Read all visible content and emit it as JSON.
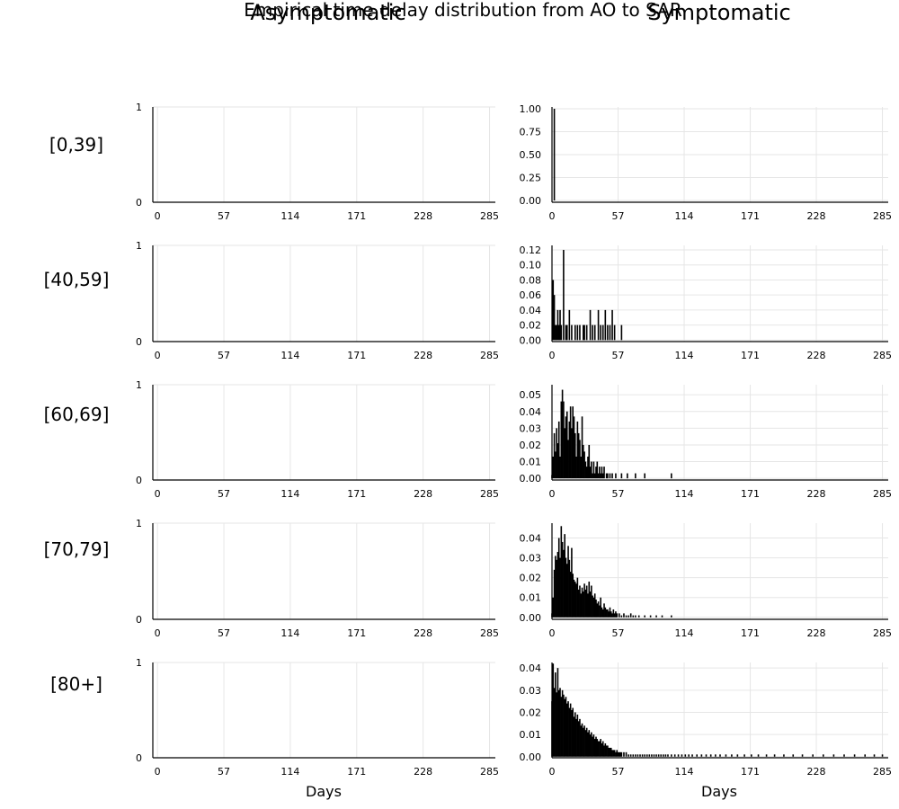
{
  "figure": {
    "suptitle": "Empirical time delay distribution from AO to SAR",
    "column_titles": [
      "Asymptomatic",
      "Symptomatic"
    ],
    "row_labels": [
      "[0,39]",
      "[40,59]",
      "[60,69]",
      "[70,79]",
      "[80+]"
    ],
    "xlabel": "Days",
    "colors": {
      "bars": "#000000",
      "grid": "#e6e6e6",
      "background": "#ffffff"
    }
  },
  "chart_data": [
    {
      "type": "bar",
      "panel": "asymptomatic-0-39",
      "xlim": [
        -4,
        290
      ],
      "ylim": [
        0,
        1
      ],
      "xticks": [
        0,
        57,
        114,
        171,
        228,
        285
      ],
      "yticks": [
        0,
        1
      ],
      "ytick_labels": [
        "0",
        "1"
      ],
      "grid": true,
      "bars": []
    },
    {
      "type": "bar",
      "panel": "symptomatic-0-39",
      "xlim": [
        0,
        290
      ],
      "ylim": [
        -0.02,
        1.02
      ],
      "xticks": [
        0,
        57,
        114,
        171,
        228,
        285
      ],
      "yticks": [
        0,
        0.25,
        0.5,
        0.75,
        1
      ],
      "ytick_labels": [
        "0.00",
        "0.25",
        "0.50",
        "0.75",
        "1.00"
      ],
      "grid": true,
      "bars": [
        [
          2,
          1.0
        ]
      ]
    },
    {
      "type": "bar",
      "panel": "asymptomatic-40-59",
      "xlim": [
        -4,
        290
      ],
      "ylim": [
        0,
        1
      ],
      "xticks": [
        0,
        57,
        114,
        171,
        228,
        285
      ],
      "yticks": [
        0,
        1
      ],
      "ytick_labels": [
        "0",
        "1"
      ],
      "grid": true,
      "bars": []
    },
    {
      "type": "bar",
      "panel": "symptomatic-40-59",
      "xlim": [
        0,
        290
      ],
      "ylim": [
        -0.002,
        0.126
      ],
      "xticks": [
        0,
        57,
        114,
        171,
        228,
        285
      ],
      "yticks": [
        0,
        0.02,
        0.04,
        0.06,
        0.08,
        0.1,
        0.12
      ],
      "ytick_labels": [
        "0.00",
        "0.02",
        "0.04",
        "0.06",
        "0.08",
        "0.10",
        "0.12"
      ],
      "grid": true,
      "bars": [
        [
          1,
          0.08
        ],
        [
          2,
          0.06
        ],
        [
          3,
          0.02
        ],
        [
          4,
          0.02
        ],
        [
          5,
          0.04
        ],
        [
          6,
          0.02
        ],
        [
          7,
          0.04
        ],
        [
          8,
          0.02
        ],
        [
          10,
          0.12
        ],
        [
          12,
          0.02
        ],
        [
          13,
          0.02
        ],
        [
          15,
          0.04
        ],
        [
          17,
          0.02
        ],
        [
          20,
          0.02
        ],
        [
          22,
          0.02
        ],
        [
          24,
          0.02
        ],
        [
          27,
          0.02
        ],
        [
          28,
          0.02
        ],
        [
          30,
          0.02
        ],
        [
          33,
          0.04
        ],
        [
          35,
          0.02
        ],
        [
          37,
          0.02
        ],
        [
          40,
          0.04
        ],
        [
          42,
          0.02
        ],
        [
          44,
          0.02
        ],
        [
          46,
          0.04
        ],
        [
          48,
          0.02
        ],
        [
          50,
          0.02
        ],
        [
          52,
          0.04
        ],
        [
          54,
          0.02
        ],
        [
          60,
          0.02
        ]
      ]
    },
    {
      "type": "bar",
      "panel": "asymptomatic-60-69",
      "xlim": [
        -4,
        290
      ],
      "ylim": [
        0,
        1
      ],
      "xticks": [
        0,
        57,
        114,
        171,
        228,
        285
      ],
      "yticks": [
        0,
        1
      ],
      "ytick_labels": [
        "0",
        "1"
      ],
      "grid": true,
      "bars": []
    },
    {
      "type": "bar",
      "panel": "symptomatic-60-69",
      "xlim": [
        0,
        290
      ],
      "ylim": [
        -0.001,
        0.056
      ],
      "xticks": [
        0,
        57,
        114,
        171,
        228,
        285
      ],
      "yticks": [
        0,
        0.01,
        0.02,
        0.03,
        0.04,
        0.05
      ],
      "ytick_labels": [
        "0.00",
        "0.01",
        "0.02",
        "0.03",
        "0.04",
        "0.05"
      ],
      "grid": true,
      "bars": [
        [
          0,
          0.002
        ],
        [
          1,
          0.013
        ],
        [
          2,
          0.027
        ],
        [
          3,
          0.016
        ],
        [
          4,
          0.03
        ],
        [
          5,
          0.021
        ],
        [
          6,
          0.034
        ],
        [
          7,
          0.013
        ],
        [
          8,
          0.046
        ],
        [
          9,
          0.053
        ],
        [
          10,
          0.046
        ],
        [
          11,
          0.03
        ],
        [
          12,
          0.037
        ],
        [
          13,
          0.04
        ],
        [
          14,
          0.023
        ],
        [
          15,
          0.034
        ],
        [
          16,
          0.043
        ],
        [
          17,
          0.03
        ],
        [
          18,
          0.043
        ],
        [
          19,
          0.037
        ],
        [
          20,
          0.027
        ],
        [
          21,
          0.013
        ],
        [
          22,
          0.034
        ],
        [
          23,
          0.027
        ],
        [
          24,
          0.023
        ],
        [
          25,
          0.013
        ],
        [
          26,
          0.037
        ],
        [
          27,
          0.02
        ],
        [
          28,
          0.016
        ],
        [
          29,
          0.01
        ],
        [
          30,
          0.007
        ],
        [
          31,
          0.013
        ],
        [
          32,
          0.02
        ],
        [
          33,
          0.007
        ],
        [
          34,
          0.01
        ],
        [
          35,
          0.003
        ],
        [
          36,
          0.01
        ],
        [
          37,
          0.003
        ],
        [
          38,
          0.007
        ],
        [
          39,
          0.01
        ],
        [
          40,
          0.003
        ],
        [
          41,
          0.007
        ],
        [
          42,
          0.003
        ],
        [
          43,
          0.007
        ],
        [
          44,
          0.003
        ],
        [
          45,
          0.007
        ],
        [
          47,
          0.003
        ],
        [
          48,
          0.003
        ],
        [
          50,
          0.003
        ],
        [
          52,
          0.003
        ],
        [
          55,
          0.003
        ],
        [
          60,
          0.003
        ],
        [
          65,
          0.003
        ],
        [
          72,
          0.003
        ],
        [
          80,
          0.003
        ],
        [
          103,
          0.003
        ]
      ]
    },
    {
      "type": "bar",
      "panel": "asymptomatic-70-79",
      "xlim": [
        -4,
        290
      ],
      "ylim": [
        0,
        1
      ],
      "xticks": [
        0,
        57,
        114,
        171,
        228,
        285
      ],
      "yticks": [
        0,
        1
      ],
      "ytick_labels": [
        "0",
        "1"
      ],
      "grid": true,
      "bars": []
    },
    {
      "type": "bar",
      "panel": "symptomatic-70-79",
      "xlim": [
        0,
        290
      ],
      "ylim": [
        -0.001,
        0.0475
      ],
      "xticks": [
        0,
        57,
        114,
        171,
        228,
        285
      ],
      "yticks": [
        0,
        0.01,
        0.02,
        0.03,
        0.04
      ],
      "ytick_labels": [
        "0.00",
        "0.01",
        "0.02",
        "0.03",
        "0.04"
      ],
      "grid": true,
      "bars": [
        [
          0,
          0.002
        ],
        [
          1,
          0.01
        ],
        [
          2,
          0.024
        ],
        [
          3,
          0.031
        ],
        [
          4,
          0.029
        ],
        [
          5,
          0.033
        ],
        [
          6,
          0.04
        ],
        [
          7,
          0.03
        ],
        [
          8,
          0.046
        ],
        [
          9,
          0.038
        ],
        [
          10,
          0.034
        ],
        [
          11,
          0.042
        ],
        [
          12,
          0.03
        ],
        [
          13,
          0.027
        ],
        [
          14,
          0.036
        ],
        [
          15,
          0.029
        ],
        [
          16,
          0.023
        ],
        [
          17,
          0.035
        ],
        [
          18,
          0.022
        ],
        [
          19,
          0.019
        ],
        [
          20,
          0.018
        ],
        [
          21,
          0.017
        ],
        [
          22,
          0.02
        ],
        [
          23,
          0.014
        ],
        [
          24,
          0.016
        ],
        [
          25,
          0.012
        ],
        [
          26,
          0.015
        ],
        [
          27,
          0.013
        ],
        [
          28,
          0.017
        ],
        [
          29,
          0.014
        ],
        [
          30,
          0.016
        ],
        [
          31,
          0.012
        ],
        [
          32,
          0.018
        ],
        [
          33,
          0.013
        ],
        [
          34,
          0.016
        ],
        [
          35,
          0.011
        ],
        [
          36,
          0.01
        ],
        [
          37,
          0.012
        ],
        [
          38,
          0.009
        ],
        [
          39,
          0.007
        ],
        [
          40,
          0.008
        ],
        [
          41,
          0.006
        ],
        [
          42,
          0.01
        ],
        [
          43,
          0.005
        ],
        [
          44,
          0.004
        ],
        [
          45,
          0.007
        ],
        [
          46,
          0.005
        ],
        [
          47,
          0.004
        ],
        [
          48,
          0.004
        ],
        [
          49,
          0.003
        ],
        [
          50,
          0.005
        ],
        [
          51,
          0.003
        ],
        [
          52,
          0.002
        ],
        [
          53,
          0.004
        ],
        [
          54,
          0.002
        ],
        [
          55,
          0.003
        ],
        [
          56,
          0.002
        ],
        [
          58,
          0.002
        ],
        [
          60,
          0.001
        ],
        [
          62,
          0.002
        ],
        [
          64,
          0.001
        ],
        [
          66,
          0.001
        ],
        [
          68,
          0.002
        ],
        [
          70,
          0.001
        ],
        [
          72,
          0.001
        ],
        [
          75,
          0.001
        ],
        [
          80,
          0.001
        ],
        [
          85,
          0.001
        ],
        [
          90,
          0.001
        ],
        [
          95,
          0.001
        ],
        [
          103,
          0.001
        ]
      ]
    },
    {
      "type": "bar",
      "panel": "asymptomatic-80plus",
      "xlim": [
        -4,
        290
      ],
      "ylim": [
        0,
        1
      ],
      "xticks": [
        0,
        57,
        114,
        171,
        228,
        285
      ],
      "yticks": [
        0,
        1
      ],
      "ytick_labels": [
        "0",
        "1"
      ],
      "grid": true,
      "bars": []
    },
    {
      "type": "bar",
      "panel": "symptomatic-80plus",
      "xlim": [
        0,
        290
      ],
      "ylim": [
        -0.0005,
        0.0425
      ],
      "xticks": [
        0,
        57,
        114,
        171,
        228,
        285
      ],
      "yticks": [
        0,
        0.01,
        0.02,
        0.03,
        0.04
      ],
      "ytick_labels": [
        "0.00",
        "0.01",
        "0.02",
        "0.03",
        "0.04"
      ],
      "grid": true,
      "bars": [
        [
          0,
          0.025
        ],
        [
          1,
          0.042
        ],
        [
          2,
          0.031
        ],
        [
          3,
          0.038
        ],
        [
          4,
          0.029
        ],
        [
          5,
          0.04
        ],
        [
          6,
          0.03
        ],
        [
          7,
          0.031
        ],
        [
          8,
          0.027
        ],
        [
          9,
          0.03
        ],
        [
          10,
          0.028
        ],
        [
          11,
          0.026
        ],
        [
          12,
          0.027
        ],
        [
          13,
          0.024
        ],
        [
          14,
          0.025
        ],
        [
          15,
          0.022
        ],
        [
          16,
          0.024
        ],
        [
          17,
          0.021
        ],
        [
          18,
          0.022
        ],
        [
          19,
          0.018
        ],
        [
          20,
          0.02
        ],
        [
          21,
          0.017
        ],
        [
          22,
          0.019
        ],
        [
          23,
          0.016
        ],
        [
          24,
          0.017
        ],
        [
          25,
          0.014
        ],
        [
          26,
          0.015
        ],
        [
          27,
          0.013
        ],
        [
          28,
          0.014
        ],
        [
          29,
          0.012
        ],
        [
          30,
          0.013
        ],
        [
          31,
          0.011
        ],
        [
          32,
          0.012
        ],
        [
          33,
          0.01
        ],
        [
          34,
          0.011
        ],
        [
          35,
          0.009
        ],
        [
          36,
          0.01
        ],
        [
          37,
          0.008
        ],
        [
          38,
          0.009
        ],
        [
          39,
          0.008
        ],
        [
          40,
          0.007
        ],
        [
          41,
          0.007
        ],
        [
          42,
          0.008
        ],
        [
          43,
          0.006
        ],
        [
          44,
          0.007
        ],
        [
          45,
          0.005
        ],
        [
          46,
          0.006
        ],
        [
          47,
          0.005
        ],
        [
          48,
          0.005
        ],
        [
          49,
          0.004
        ],
        [
          50,
          0.004
        ],
        [
          51,
          0.004
        ],
        [
          52,
          0.003
        ],
        [
          53,
          0.003
        ],
        [
          54,
          0.003
        ],
        [
          55,
          0.002
        ],
        [
          56,
          0.003
        ],
        [
          57,
          0.002
        ],
        [
          58,
          0.002
        ],
        [
          59,
          0.002
        ],
        [
          60,
          0.002
        ],
        [
          62,
          0.002
        ],
        [
          64,
          0.002
        ],
        [
          66,
          0.001
        ],
        [
          68,
          0.001
        ],
        [
          70,
          0.001
        ],
        [
          72,
          0.001
        ],
        [
          74,
          0.001
        ],
        [
          76,
          0.001
        ],
        [
          78,
          0.001
        ],
        [
          80,
          0.001
        ],
        [
          82,
          0.001
        ],
        [
          84,
          0.001
        ],
        [
          86,
          0.001
        ],
        [
          88,
          0.001
        ],
        [
          90,
          0.001
        ],
        [
          92,
          0.001
        ],
        [
          94,
          0.001
        ],
        [
          96,
          0.001
        ],
        [
          98,
          0.001
        ],
        [
          100,
          0.001
        ],
        [
          103,
          0.001
        ],
        [
          106,
          0.001
        ],
        [
          109,
          0.001
        ],
        [
          112,
          0.001
        ],
        [
          115,
          0.001
        ],
        [
          118,
          0.001
        ],
        [
          121,
          0.001
        ],
        [
          125,
          0.001
        ],
        [
          129,
          0.001
        ],
        [
          133,
          0.001
        ],
        [
          137,
          0.001
        ],
        [
          141,
          0.001
        ],
        [
          145,
          0.001
        ],
        [
          150,
          0.001
        ],
        [
          155,
          0.001
        ],
        [
          160,
          0.001
        ],
        [
          166,
          0.001
        ],
        [
          172,
          0.001
        ],
        [
          178,
          0.001
        ],
        [
          185,
          0.001
        ],
        [
          192,
          0.001
        ],
        [
          200,
          0.001
        ],
        [
          208,
          0.001
        ],
        [
          216,
          0.001
        ],
        [
          225,
          0.001
        ],
        [
          234,
          0.001
        ],
        [
          243,
          0.001
        ],
        [
          252,
          0.001
        ],
        [
          261,
          0.001
        ],
        [
          270,
          0.001
        ],
        [
          278,
          0.001
        ],
        [
          285,
          0.001
        ]
      ]
    }
  ]
}
